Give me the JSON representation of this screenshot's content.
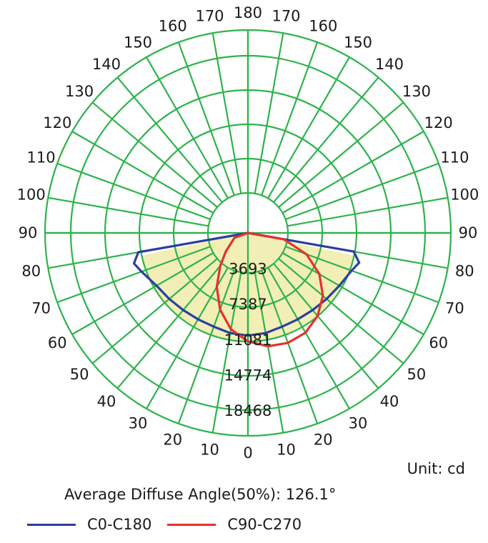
{
  "chart_data": {
    "type": "polar",
    "angle_labels_right": [
      "0",
      "10",
      "20",
      "30",
      "40",
      "50",
      "60",
      "70",
      "80",
      "90",
      "100",
      "110",
      "120",
      "130",
      "140",
      "150",
      "160",
      "170",
      "180"
    ],
    "angle_labels_left": [
      "10",
      "20",
      "30",
      "40",
      "50",
      "60",
      "70",
      "80",
      "90",
      "100",
      "110",
      "120",
      "130",
      "140",
      "150",
      "160",
      "170"
    ],
    "radial_ticks": [
      "3693",
      "7387",
      "11081",
      "14774",
      "18468"
    ],
    "radial_max": 18468,
    "unit": "Unit: cd",
    "annotation": "Average Diffuse Angle(50%): 126.1°",
    "series": [
      {
        "name": "C0-C180",
        "color": "#2a3f9e",
        "points": [
          {
            "angle": -90,
            "value": 0
          },
          {
            "angle": -80,
            "value": 11600
          },
          {
            "angle": -75,
            "value": 12300
          },
          {
            "angle": -70,
            "value": 11800
          },
          {
            "angle": -60,
            "value": 11000
          },
          {
            "angle": -50,
            "value": 10700
          },
          {
            "angle": -40,
            "value": 10500
          },
          {
            "angle": -30,
            "value": 10400
          },
          {
            "angle": -20,
            "value": 10400
          },
          {
            "angle": -10,
            "value": 10600
          },
          {
            "angle": 0,
            "value": 10700
          },
          {
            "angle": 10,
            "value": 10600
          },
          {
            "angle": 20,
            "value": 10400
          },
          {
            "angle": 30,
            "value": 10400
          },
          {
            "angle": 40,
            "value": 10500
          },
          {
            "angle": 50,
            "value": 10700
          },
          {
            "angle": 60,
            "value": 11000
          },
          {
            "angle": 70,
            "value": 11500
          },
          {
            "angle": 75,
            "value": 12000
          },
          {
            "angle": 80,
            "value": 11200
          },
          {
            "angle": 90,
            "value": 0
          }
        ]
      },
      {
        "name": "C90-C270",
        "color": "#e8302c",
        "points": [
          {
            "angle": -90,
            "value": 0
          },
          {
            "angle": -70,
            "value": 1500
          },
          {
            "angle": -50,
            "value": 3000
          },
          {
            "angle": -40,
            "value": 4500
          },
          {
            "angle": -30,
            "value": 6500
          },
          {
            "angle": -20,
            "value": 8500
          },
          {
            "angle": -10,
            "value": 10200
          },
          {
            "angle": 0,
            "value": 11300
          },
          {
            "angle": 10,
            "value": 12000
          },
          {
            "angle": 20,
            "value": 12200
          },
          {
            "angle": 30,
            "value": 12000
          },
          {
            "angle": 40,
            "value": 11300
          },
          {
            "angle": 50,
            "value": 10200
          },
          {
            "angle": 60,
            "value": 8600
          },
          {
            "angle": 70,
            "value": 6500
          },
          {
            "angle": 80,
            "value": 3800
          },
          {
            "angle": 90,
            "value": 0
          }
        ]
      }
    ],
    "fill_color": "#f2efb6",
    "grid_color": "#2db34a"
  }
}
